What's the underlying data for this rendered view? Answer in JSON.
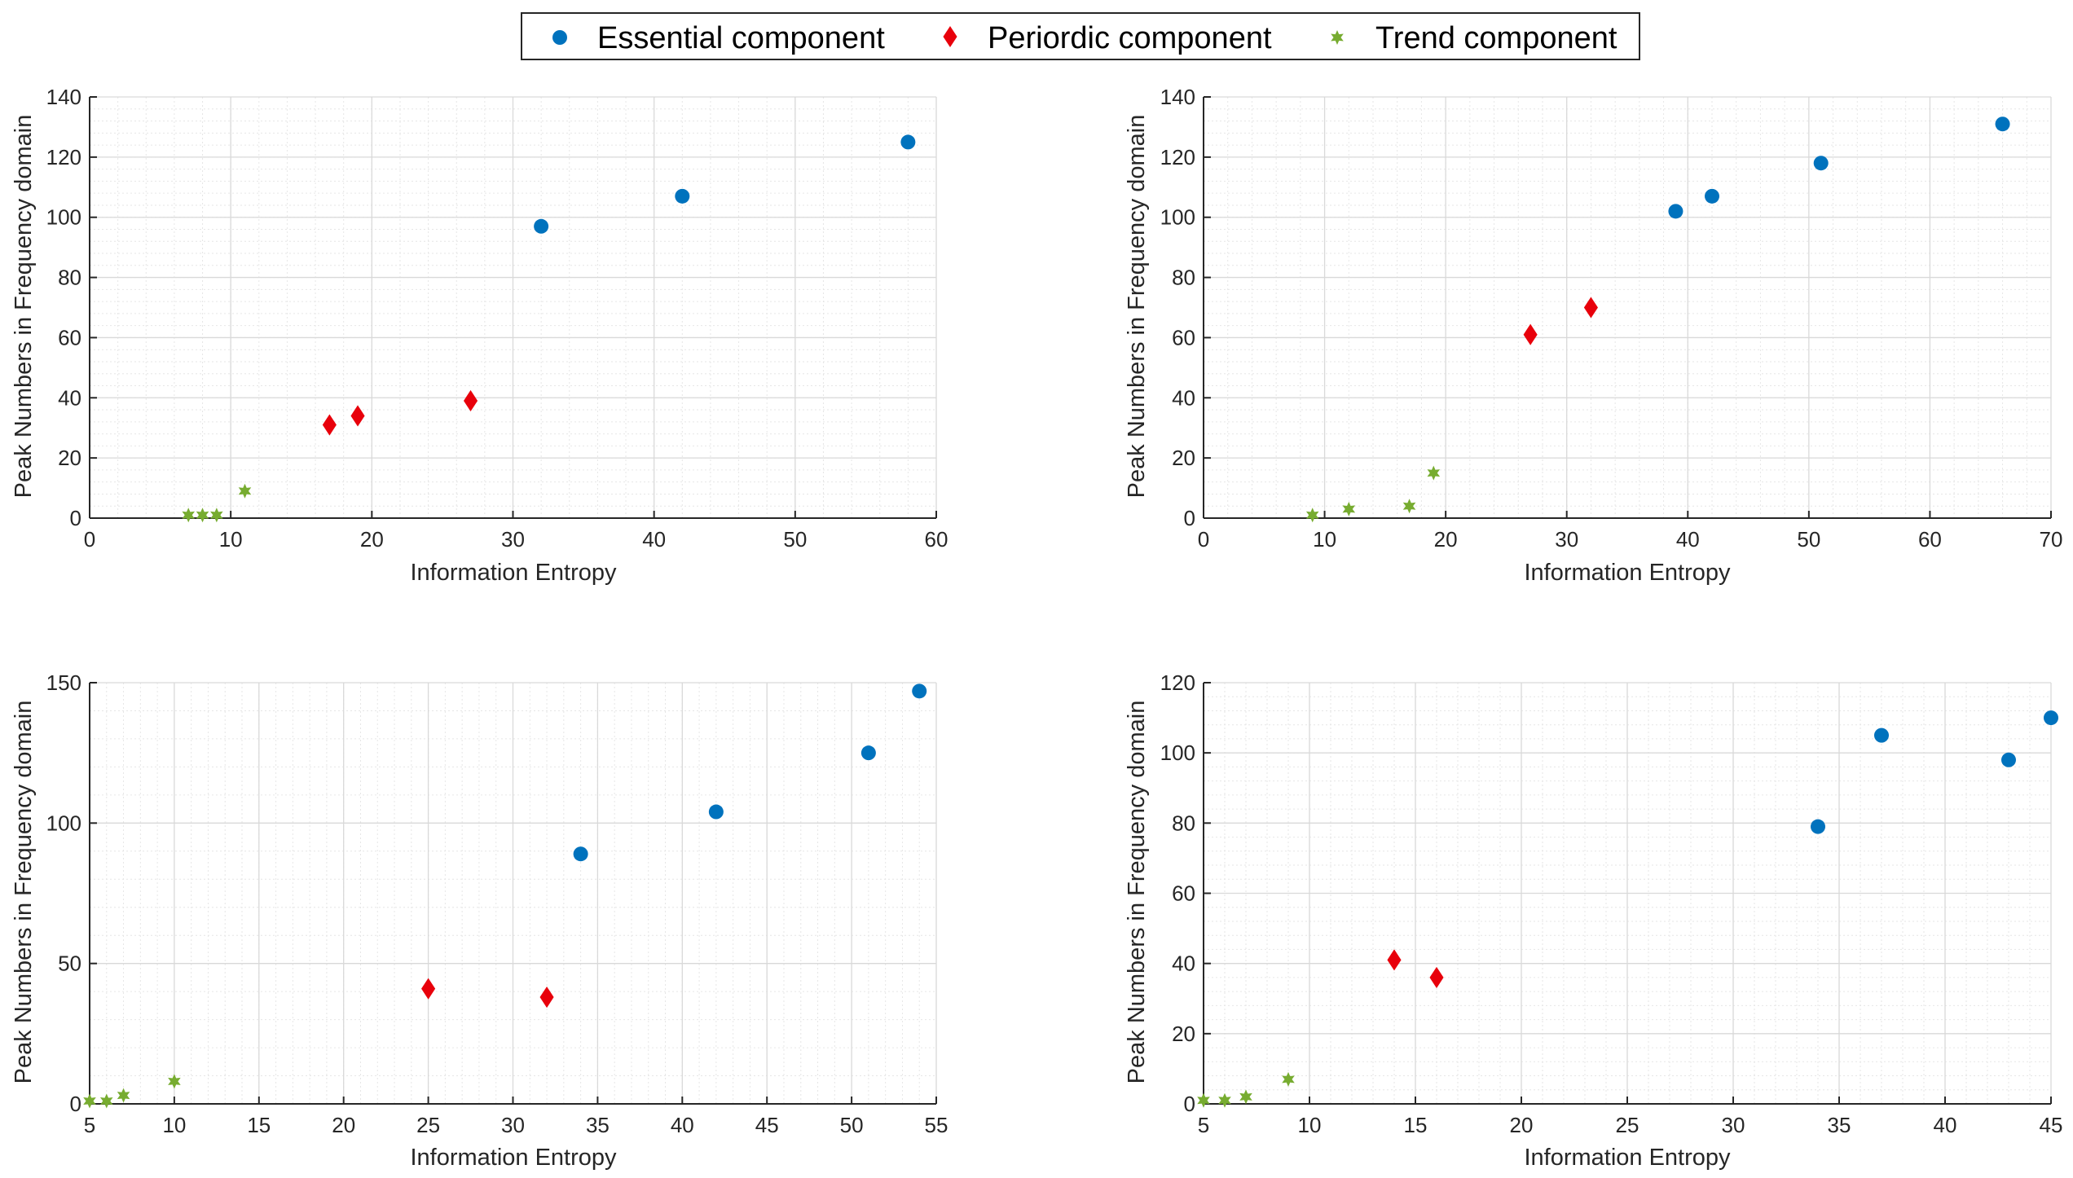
{
  "legend": {
    "items": [
      {
        "label": "Essential component",
        "color": "#0072BD",
        "marker": "circle"
      },
      {
        "label": "Periordic component",
        "color": "#E8000B",
        "marker": "diamond"
      },
      {
        "label": "Trend component",
        "color": "#77AC30",
        "marker": "star"
      }
    ]
  },
  "chart_data": [
    {
      "type": "scatter",
      "xlabel": "Information Entropy",
      "ylabel": "Peak Numbers in Frequency domain",
      "xlim": [
        0,
        60
      ],
      "ylim": [
        0,
        140
      ],
      "xticks": [
        0,
        10,
        20,
        30,
        40,
        50,
        60
      ],
      "yticks": [
        0,
        20,
        40,
        60,
        80,
        100,
        120,
        140
      ],
      "grid": true,
      "series": [
        {
          "name": "Essential component",
          "x": [
            32,
            42,
            58
          ],
          "y": [
            97,
            107,
            125
          ]
        },
        {
          "name": "Periordic component",
          "x": [
            17,
            19,
            27
          ],
          "y": [
            31,
            34,
            39
          ]
        },
        {
          "name": "Trend component",
          "x": [
            7,
            8,
            9,
            11
          ],
          "y": [
            1,
            1,
            1,
            9
          ]
        }
      ]
    },
    {
      "type": "scatter",
      "xlabel": "Information Entropy",
      "ylabel": "Peak Numbers in Frequency domain",
      "xlim": [
        0,
        70
      ],
      "ylim": [
        0,
        140
      ],
      "xticks": [
        0,
        10,
        20,
        30,
        40,
        50,
        60,
        70
      ],
      "yticks": [
        0,
        20,
        40,
        60,
        80,
        100,
        120,
        140
      ],
      "grid": true,
      "series": [
        {
          "name": "Essential component",
          "x": [
            39,
            42,
            51,
            66
          ],
          "y": [
            102,
            107,
            118,
            131
          ]
        },
        {
          "name": "Periordic component",
          "x": [
            27,
            32
          ],
          "y": [
            61,
            70
          ]
        },
        {
          "name": "Trend component",
          "x": [
            9,
            12,
            17,
            19
          ],
          "y": [
            1,
            3,
            4,
            15
          ]
        }
      ]
    },
    {
      "type": "scatter",
      "xlabel": "Information Entropy",
      "ylabel": "Peak Numbers in Frequency domain",
      "xlim": [
        5,
        55
      ],
      "ylim": [
        0,
        150
      ],
      "xticks": [
        5,
        10,
        15,
        20,
        25,
        30,
        35,
        40,
        45,
        50,
        55
      ],
      "yticks": [
        0,
        50,
        100,
        150
      ],
      "grid": true,
      "series": [
        {
          "name": "Essential component",
          "x": [
            34,
            42,
            51,
            54
          ],
          "y": [
            89,
            104,
            125,
            147
          ]
        },
        {
          "name": "Periordic component",
          "x": [
            25,
            32
          ],
          "y": [
            41,
            38
          ]
        },
        {
          "name": "Trend component",
          "x": [
            5,
            6,
            7,
            10
          ],
          "y": [
            1,
            1,
            3,
            8
          ]
        }
      ]
    },
    {
      "type": "scatter",
      "xlabel": "Information Entropy",
      "ylabel": "Peak Numbers in Frequency domain",
      "xlim": [
        5,
        45
      ],
      "ylim": [
        0,
        120
      ],
      "xticks": [
        5,
        10,
        15,
        20,
        25,
        30,
        35,
        40,
        45
      ],
      "yticks": [
        0,
        20,
        40,
        60,
        80,
        100,
        120
      ],
      "grid": true,
      "series": [
        {
          "name": "Essential component",
          "x": [
            34,
            37,
            43,
            45
          ],
          "y": [
            79,
            105,
            98,
            110
          ]
        },
        {
          "name": "Periordic component",
          "x": [
            14,
            16
          ],
          "y": [
            41,
            36
          ]
        },
        {
          "name": "Trend component",
          "x": [
            5,
            6,
            7,
            9
          ],
          "y": [
            1,
            1,
            2,
            7
          ]
        }
      ]
    }
  ]
}
